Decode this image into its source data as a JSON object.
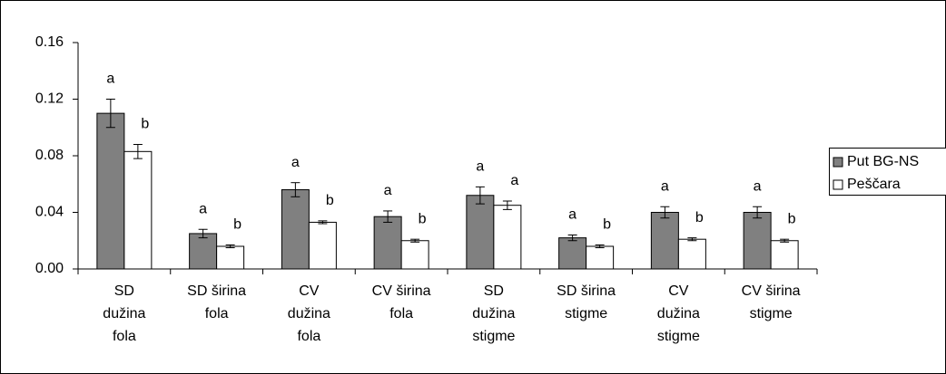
{
  "chart_data": {
    "type": "bar",
    "categories": [
      "SD\ndužina\nfola",
      "SD širina\nfola",
      "CV\ndužina\nfola",
      "CV širina\nfola",
      "SD\ndužina\nstigme",
      "SD širina\nstigme",
      "CV\ndužina\nstigme",
      "CV širina\nstigme"
    ],
    "series": [
      {
        "name": "Put BG-NS",
        "color": "#808080",
        "values": [
          0.11,
          0.025,
          0.056,
          0.037,
          0.052,
          0.022,
          0.04,
          0.04
        ],
        "errors": [
          0.01,
          0.003,
          0.005,
          0.004,
          0.006,
          0.002,
          0.004,
          0.004
        ],
        "labels": [
          "a",
          "a",
          "a",
          "a",
          "a",
          "a",
          "a",
          "a"
        ]
      },
      {
        "name": "Peščara",
        "color": "#ffffff",
        "values": [
          0.083,
          0.016,
          0.033,
          0.02,
          0.045,
          0.016,
          0.021,
          0.02
        ],
        "errors": [
          0.005,
          0.001,
          0.001,
          0.001,
          0.003,
          0.001,
          0.001,
          0.001
        ],
        "labels": [
          "b",
          "b",
          "b",
          "b",
          "a",
          "b",
          "b",
          "b"
        ]
      }
    ],
    "ylim": [
      0,
      0.16
    ],
    "yticks": [
      {
        "value": 0,
        "label": "0.00"
      },
      {
        "value": 0.04,
        "label": "0.04"
      },
      {
        "value": 0.08,
        "label": "0.08"
      },
      {
        "value": 0.12,
        "label": "0.12"
      },
      {
        "value": 0.16,
        "label": "0.16"
      }
    ],
    "grid": false,
    "legend": "right"
  }
}
